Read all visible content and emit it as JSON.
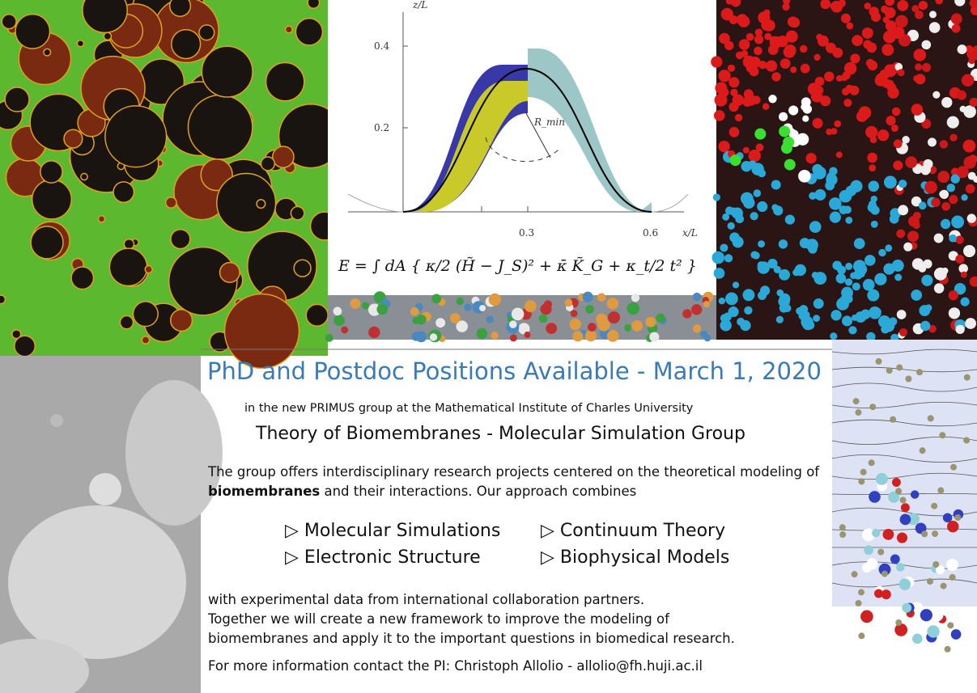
{
  "figure": {
    "y_axis_label": "z/L",
    "x_axis_label": "x/L",
    "yticks": [
      "0.4",
      "0.2"
    ],
    "xticks": [
      "0.3",
      "0.6"
    ],
    "radius_label": "R_min",
    "equation": "E = ∫ dA { κ/2 (H̃ − J_S)² + κ̄ K̃_G + κ_t/2 t² }"
  },
  "header": {
    "title": "PhD and Postdoc Positions Available - March 1, 2020",
    "affiliation": "in the new PRIMUS group at the Mathematical Institute of Charles University",
    "group": "Theory of Biomembranes - Molecular Simulation Group"
  },
  "intro": {
    "before": "The group offers interdisciplinary research projects centered on the theoretical modeling of ",
    "bold": "biomembranes",
    "after": " and their interactions. Our approach combines"
  },
  "methods": [
    "▷ Molecular Simulations",
    "▷ Continuum Theory",
    "▷ Electronic Structure",
    "▷ Biophysical Models"
  ],
  "closing": [
    "with experimental data from international collaboration partners.",
    "Together we will create a new framework to improve the modeling of",
    "biomembranes and apply it to the important questions in biomedical research."
  ],
  "contact": "For more information contact the PI: Christoph Allolio - allolio@fh.huji.ac.il"
}
